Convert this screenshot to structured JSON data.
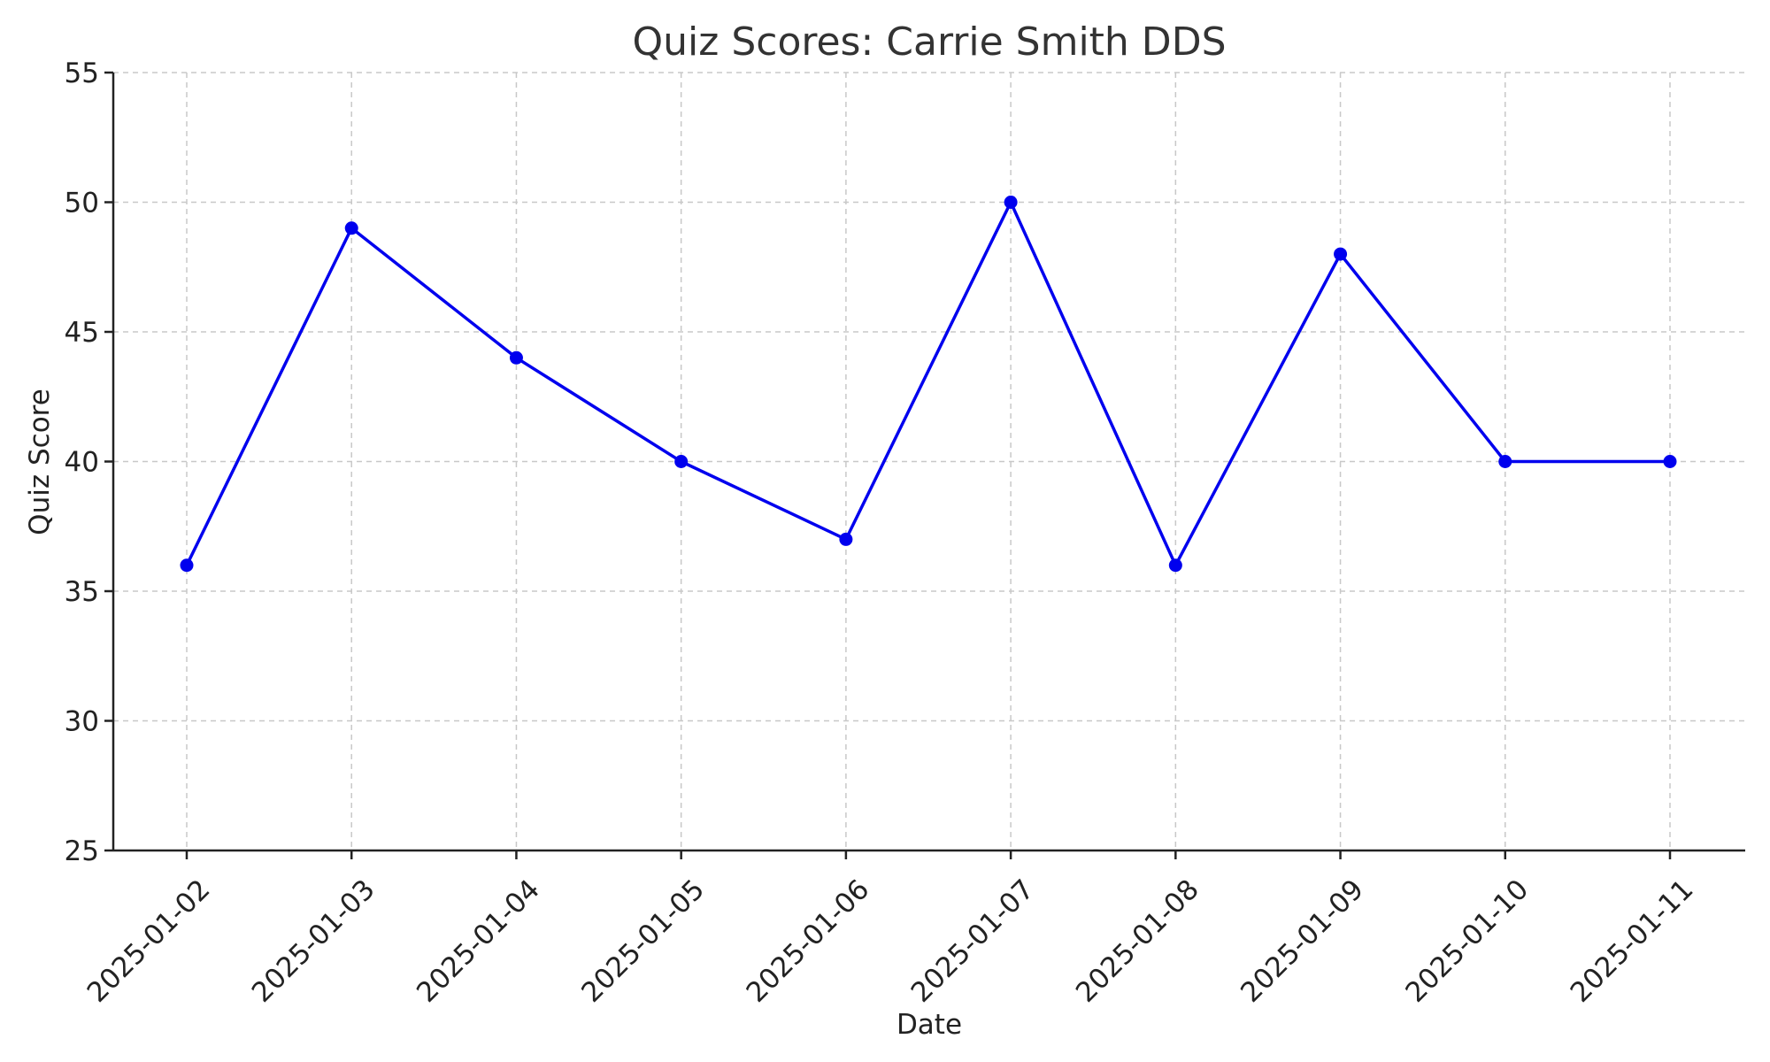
{
  "chart_data": {
    "type": "line",
    "title": "Quiz Scores: Carrie Smith DDS",
    "xlabel": "Date",
    "ylabel": "Quiz Score",
    "x": [
      "2025-01-02",
      "2025-01-03",
      "2025-01-04",
      "2025-01-05",
      "2025-01-06",
      "2025-01-07",
      "2025-01-08",
      "2025-01-09",
      "2025-01-10",
      "2025-01-11"
    ],
    "series": [
      {
        "values": [
          36,
          49,
          44,
          40,
          37,
          50,
          36,
          48,
          40,
          40
        ],
        "color": "#0000ee"
      }
    ],
    "ylim": [
      25,
      55
    ],
    "yticks": [
      25,
      30,
      35,
      40,
      45,
      50,
      55
    ],
    "grid": true,
    "marker": "circle"
  }
}
